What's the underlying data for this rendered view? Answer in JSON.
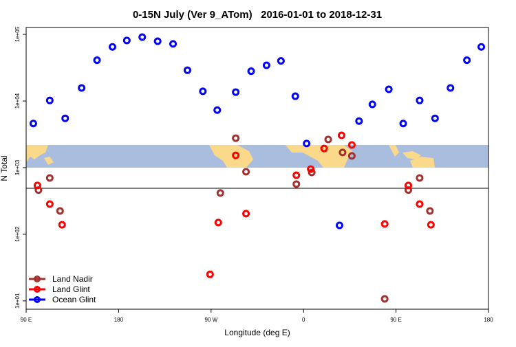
{
  "chart_data": {
    "type": "scatter",
    "title": "0-15N July (Ver 9_ATom)   2016-01-01 to 2018-12-31",
    "x_label": "Longitude (deg E)",
    "y_label": "N Total",
    "xlim": [
      90,
      540
    ],
    "xticks": [
      {
        "value": 90,
        "label": "90 E"
      },
      {
        "value": 180,
        "label": "180"
      },
      {
        "value": 270,
        "label": "90 W"
      },
      {
        "value": 360,
        "label": "0"
      },
      {
        "value": 450,
        "label": "90 E"
      },
      {
        "value": 540,
        "label": "180"
      }
    ],
    "ylim": [
      7.5,
      127000
    ],
    "y_scale": "log",
    "yticks": [
      {
        "value": 10,
        "label": "1e+01"
      },
      {
        "value": 100,
        "label": "1e+02"
      },
      {
        "value": 1000,
        "label": "1e+03"
      },
      {
        "value": 10000,
        "label": "1e+04"
      },
      {
        "value": 100000,
        "label": "1e+05"
      }
    ],
    "hline": 490,
    "legend": "lower left",
    "series": [
      {
        "name": "Land Nadir",
        "color": "#a3302c",
        "x": [
          102,
          113,
          123,
          279,
          294,
          304,
          353,
          368,
          384,
          398,
          407,
          439,
          462,
          473,
          483
        ],
        "values": [
          460,
          700,
          224,
          416,
          2770,
          867,
          566,
          847,
          2650,
          1690,
          1500,
          10.7,
          460,
          700,
          224
        ]
      },
      {
        "name": "Land Glint",
        "color": "#ff0000",
        "x": [
          101,
          113,
          125,
          269,
          277,
          294,
          304,
          353,
          367,
          380,
          397,
          407,
          439,
          462,
          473,
          484
        ],
        "values": [
          540,
          284,
          139,
          25,
          150,
          1530,
          204,
          770,
          950,
          1940,
          3050,
          2190,
          143,
          540,
          284,
          139
        ]
      },
      {
        "name": "Ocean Glint",
        "color": "#0000ff",
        "x": [
          97,
          113,
          128,
          144,
          159,
          174,
          188,
          203,
          218,
          233,
          247,
          262,
          276,
          294,
          309,
          324,
          338,
          352,
          363,
          395,
          414,
          427,
          443,
          457,
          473,
          488,
          503,
          519,
          533
        ],
        "values": [
          4600,
          10200,
          5500,
          15700,
          41000,
          65000,
          81000,
          91000,
          79000,
          72000,
          29000,
          14000,
          7300,
          13600,
          28000,
          34400,
          40000,
          11800,
          2300,
          136,
          5000,
          8900,
          15000,
          4600,
          10200,
          5500,
          15700,
          41000,
          65000
        ]
      }
    ]
  }
}
